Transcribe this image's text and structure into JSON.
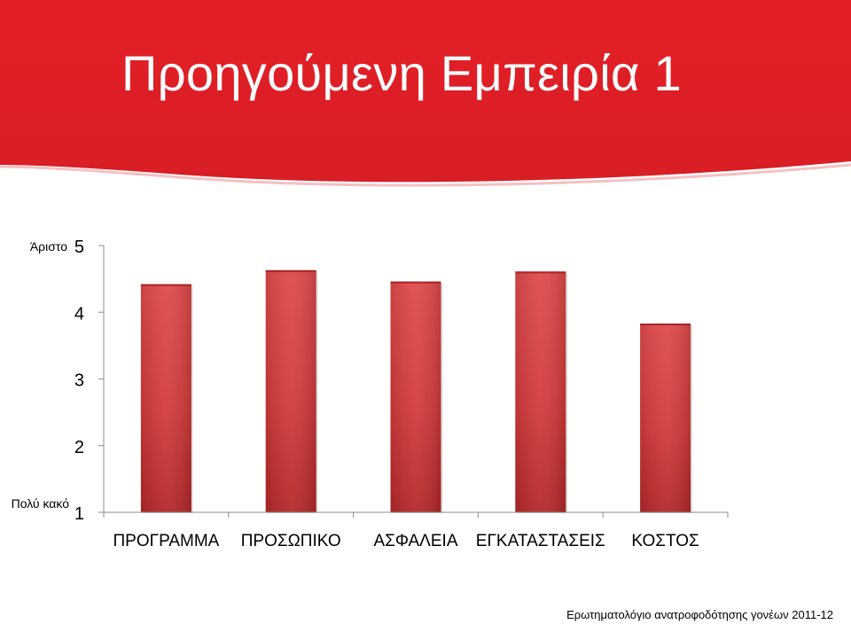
{
  "slide": {
    "title": "Προηγούμενη Εμπειρία 1",
    "footer": "Ερωτηματολόγιο ανατροφοδότησης γονέων 2011-12",
    "accent_color": "#e21f26",
    "accent_dark_color": "#b71c1c"
  },
  "chart_data": {
    "type": "bar",
    "categories": [
      "ΠΡΟΓΡΑΜΜΑ",
      "ΠΡΟΣΩΠΙΚΟ",
      "ΑΣΦΑΛΕΙΑ",
      "ΕΓΚΑΤΑΣΤΑΣΕΙΣ",
      "ΚΟΣΤΟΣ"
    ],
    "values": [
      4.42,
      4.63,
      4.46,
      4.61,
      3.83
    ],
    "ylim": [
      1,
      5
    ],
    "yticks": [
      "1",
      "2",
      "3",
      "4",
      "5"
    ],
    "ytick_values": [
      1,
      2,
      3,
      4,
      5
    ],
    "ylabel_top": "Άριστο",
    "ylabel_bottom": "Πολύ κακό",
    "grid": false,
    "bar_color": "#d9383a"
  }
}
